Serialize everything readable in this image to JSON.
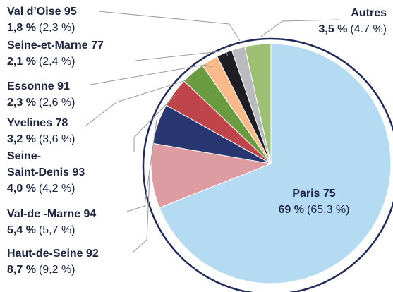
{
  "chart_data": {
    "type": "pie",
    "categories": [
      "Paris 75",
      "Haut-de-Seine 92",
      "Val-de -Marne 94",
      "Seine-\nSaint-Denis 93",
      "Yvelines 78",
      "Essonne 91",
      "Seine-et-Marne 77",
      "Val d’Oise 95",
      "Autres"
    ],
    "values": [
      69,
      8.7,
      5.4,
      4.0,
      3.2,
      2.3,
      2.1,
      1.8,
      3.5
    ],
    "value_labels": [
      "69 %",
      "8,7 %",
      "5,4 %",
      "4,0 %",
      "3,2 %",
      "2,3 %",
      "2,1 %",
      "1,8 %",
      "3,5 %"
    ],
    "previous_values": [
      65.3,
      9.2,
      5.7,
      4.2,
      3.6,
      2.6,
      2.4,
      2.3,
      4.7
    ],
    "previous_labels": [
      "(65,3 %)",
      "(9,2 %)",
      "(5,7 %)",
      "(4,2 %)",
      "(3,6 %)",
      "(2,6 %)",
      "(2,4 %)",
      "(2,3 %)",
      "(4.7 %)"
    ],
    "colors": [
      "#b5dbf3",
      "#dc9ca1",
      "#28376f",
      "#c0454b",
      "#6b9b40",
      "#f8ba8b",
      "#1e1e24",
      "#babbbe",
      "#9cbf73"
    ]
  }
}
